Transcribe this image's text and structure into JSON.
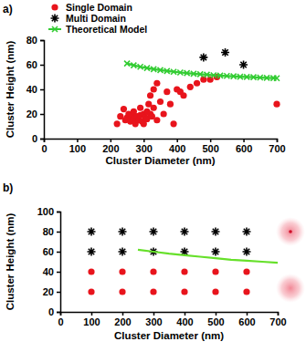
{
  "chart_data": [
    {
      "type": "scatter",
      "title": "a)",
      "xlabel": "Cluster Diameter (nm)",
      "ylabel": "Cluster Height (nm)",
      "xlim": [
        0,
        700
      ],
      "xticks": [
        0,
        100,
        200,
        300,
        400,
        500,
        600,
        700
      ],
      "ylim": [
        0,
        80
      ],
      "yticks": [
        0,
        20,
        40,
        60,
        80
      ],
      "legend": "upper left",
      "series": [
        {
          "name": "Single Domain",
          "color": "#e8141c",
          "marker": "circle",
          "x": [
            220,
            230,
            240,
            245,
            250,
            255,
            260,
            265,
            270,
            270,
            275,
            280,
            285,
            290,
            290,
            295,
            300,
            300,
            305,
            310,
            310,
            315,
            320,
            320,
            325,
            330,
            330,
            340,
            340,
            350,
            360,
            370,
            380,
            390,
            400,
            410,
            420,
            440,
            460,
            480,
            500,
            520,
            700
          ],
          "values": [
            12,
            18,
            24,
            15,
            17,
            20,
            14,
            18,
            16,
            22,
            12,
            18,
            15,
            19,
            25,
            14,
            20,
            12,
            17,
            22,
            16,
            28,
            20,
            35,
            18,
            40,
            25,
            45,
            15,
            30,
            20,
            38,
            28,
            12,
            40,
            38,
            35,
            42,
            45,
            48,
            48,
            50,
            28
          ]
        },
        {
          "name": "Multi Domain",
          "color": "#000000",
          "marker": "asterisk",
          "x": [
            480,
            545,
            600
          ],
          "values": [
            66,
            70,
            60
          ]
        },
        {
          "name": "Theoretical Model",
          "type": "line",
          "color": "#33cc33",
          "marker": "x",
          "line_style": "solid",
          "x": [
            250,
            270,
            290,
            310,
            330,
            350,
            370,
            390,
            410,
            430,
            450,
            470,
            490,
            510,
            530,
            550,
            570,
            590,
            610,
            630,
            650,
            670,
            690,
            700
          ],
          "values": [
            61,
            59.5,
            58.3,
            57.3,
            56.4,
            55.6,
            54.9,
            54.3,
            53.7,
            53.2,
            52.7,
            52.3,
            51.9,
            51.5,
            51.2,
            50.9,
            50.6,
            50.3,
            50.1,
            49.9,
            49.6,
            49.4,
            49.2,
            49.1
          ]
        }
      ]
    },
    {
      "type": "scatter",
      "title": "b)",
      "xlabel": "Cluster Diameter (nm)",
      "ylabel": "Cluster Height (nm)",
      "xlim": [
        0,
        700
      ],
      "xticks": [
        0,
        100,
        200,
        300,
        400,
        500,
        600,
        700
      ],
      "ylim": [
        0,
        100
      ],
      "yticks": [
        0,
        20,
        40,
        60,
        80,
        100
      ],
      "series": [
        {
          "color": "#000000",
          "marker": "asterisk",
          "x": [
            100,
            200,
            300,
            400,
            500,
            600,
            100,
            200,
            300,
            400,
            500,
            600
          ],
          "values": [
            80,
            80,
            80,
            80,
            80,
            80,
            60,
            60,
            60,
            60,
            60,
            60
          ]
        },
        {
          "color": "#e8141c",
          "marker": "circle",
          "x": [
            100,
            200,
            300,
            400,
            500,
            600,
            100,
            200,
            300,
            400,
            500,
            600
          ],
          "values": [
            40,
            40,
            40,
            40,
            40,
            40,
            20,
            20,
            20,
            20,
            20,
            20
          ]
        },
        {
          "type": "line",
          "color": "#66e02a",
          "line_style": "solid",
          "x": [
            250,
            300,
            350,
            400,
            450,
            500,
            550,
            600,
            650,
            700
          ],
          "values": [
            62,
            60,
            58,
            56.5,
            55,
            53.5,
            52,
            51,
            50,
            49
          ]
        }
      ]
    }
  ]
}
